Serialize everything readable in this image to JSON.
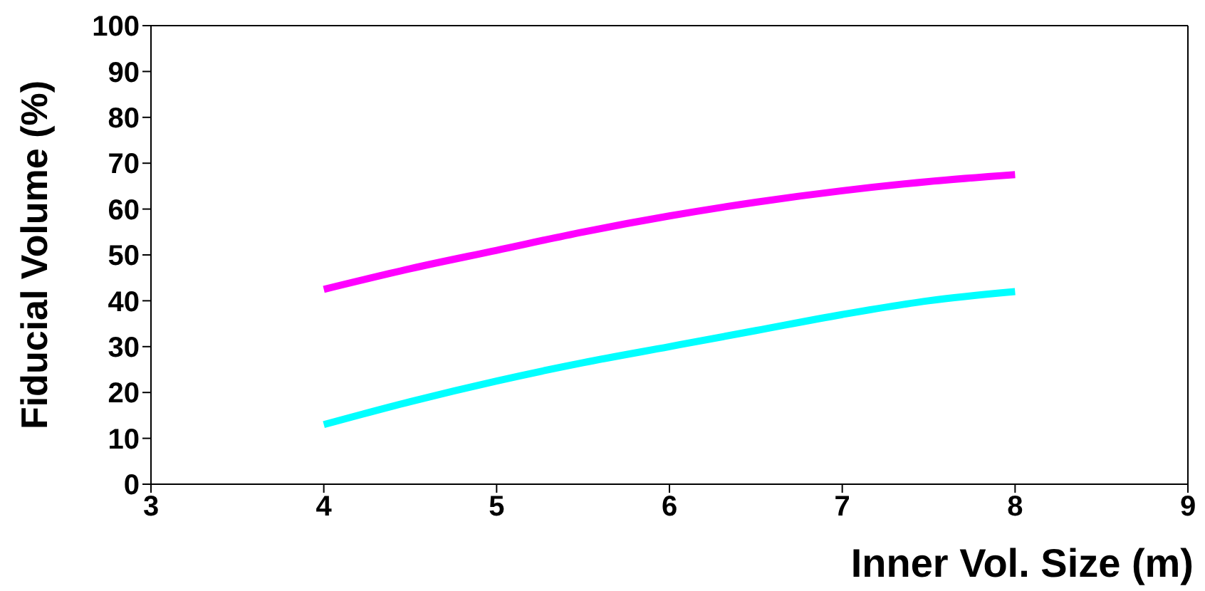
{
  "chart_data": {
    "type": "line",
    "xlabel": "Inner Vol. Size (m)",
    "ylabel": "Fiducial Volume (%)",
    "x": [
      4,
      4.5,
      5,
      5.5,
      6,
      6.5,
      7,
      7.5,
      8
    ],
    "series": [
      {
        "color": "#ff00ff",
        "values": [
          42.5,
          47,
          51,
          55,
          58.5,
          61.5,
          64,
          66,
          67.5
        ]
      },
      {
        "color": "#00ffff",
        "values": [
          13,
          18,
          22.5,
          26.5,
          30,
          33.5,
          37,
          40,
          42
        ]
      }
    ],
    "xlim": [
      3,
      9
    ],
    "xticks": [
      3,
      4,
      5,
      6,
      7,
      8,
      9
    ],
    "ylim": [
      0,
      100
    ],
    "yticks": [
      0,
      10,
      20,
      30,
      40,
      50,
      60,
      70,
      80,
      90,
      100
    ],
    "grid": false,
    "legend": false,
    "marker": "none",
    "line_style": "solid"
  }
}
